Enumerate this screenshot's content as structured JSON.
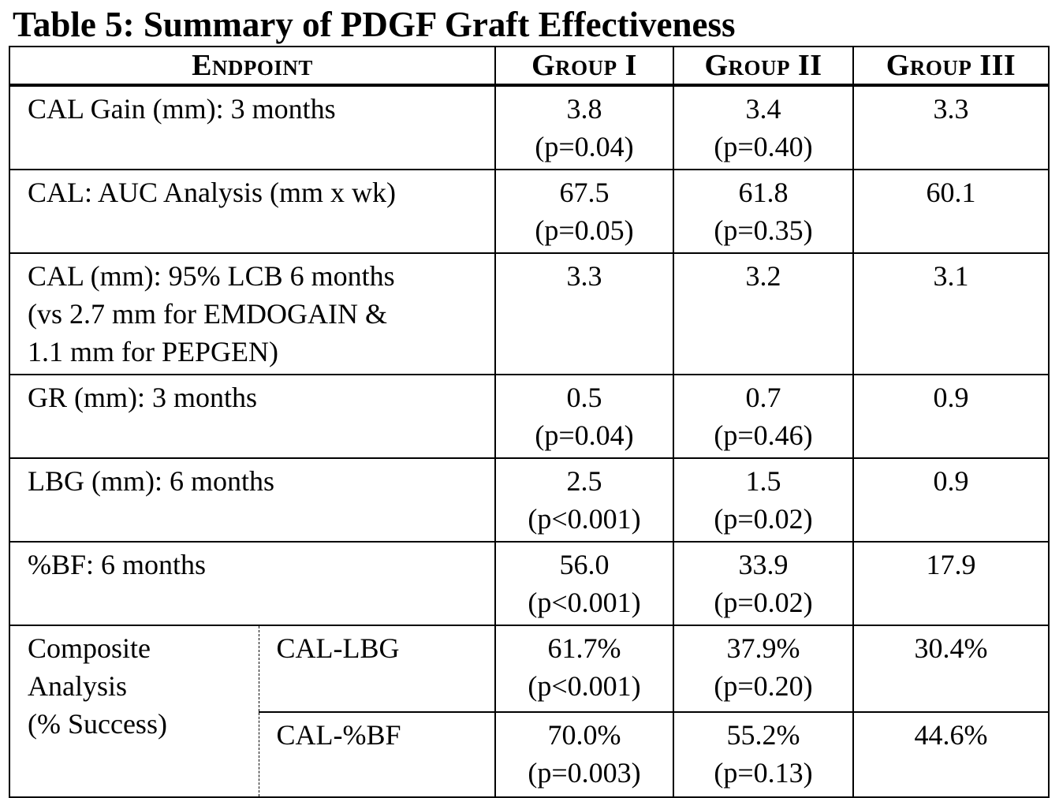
{
  "title": "Table 5:  Summary of PDGF Graft Effectiveness",
  "headers": {
    "endpoint": "Endpoint",
    "group1": "Group I",
    "group2": "Group II",
    "group3": "Group III"
  },
  "rows": [
    {
      "label": [
        "CAL Gain (mm): 3 months"
      ],
      "g1": [
        "3.8",
        "(p=0.04)"
      ],
      "g2": [
        "3.4",
        "(p=0.40)"
      ],
      "g3": [
        "3.3"
      ]
    },
    {
      "label": [
        "CAL: AUC Analysis (mm x wk)"
      ],
      "g1": [
        "67.5",
        "(p=0.05)"
      ],
      "g2": [
        "61.8",
        "(p=0.35)"
      ],
      "g3": [
        "60.1"
      ]
    },
    {
      "label": [
        "CAL (mm): 95% LCB 6 months",
        "(vs 2.7 mm for EMDOGAIN &",
        "1.1 mm for PEPGEN)"
      ],
      "g1": [
        "3.3"
      ],
      "g2": [
        "3.2"
      ],
      "g3": [
        "3.1"
      ]
    },
    {
      "label": [
        "GR (mm): 3 months"
      ],
      "g1": [
        "0.5",
        "(p=0.04)"
      ],
      "g2": [
        "0.7",
        "(p=0.46)"
      ],
      "g3": [
        "0.9"
      ]
    },
    {
      "label": [
        "LBG (mm): 6 months"
      ],
      "g1": [
        "2.5",
        "(p<0.001)"
      ],
      "g2": [
        "1.5",
        "(p=0.02)"
      ],
      "g3": [
        "0.9"
      ]
    },
    {
      "label": [
        "%BF: 6 months"
      ],
      "g1": [
        "56.0",
        "(p<0.001)"
      ],
      "g2": [
        "33.9",
        "(p=0.02)"
      ],
      "g3": [
        "17.9"
      ]
    }
  ],
  "composite": {
    "label": [
      "Composite",
      "Analysis",
      "(% Success)"
    ],
    "rows": [
      {
        "sub": "CAL-LBG",
        "g1": [
          "61.7%",
          "(p<0.001)"
        ],
        "g2": [
          "37.9%",
          "(p=0.20)"
        ],
        "g3": [
          "30.4%"
        ]
      },
      {
        "sub": "CAL-%BF",
        "g1": [
          "70.0%",
          "(p=0.003)"
        ],
        "g2": [
          "55.2%",
          "(p=0.13)"
        ],
        "g3": [
          "44.6%"
        ]
      }
    ]
  }
}
